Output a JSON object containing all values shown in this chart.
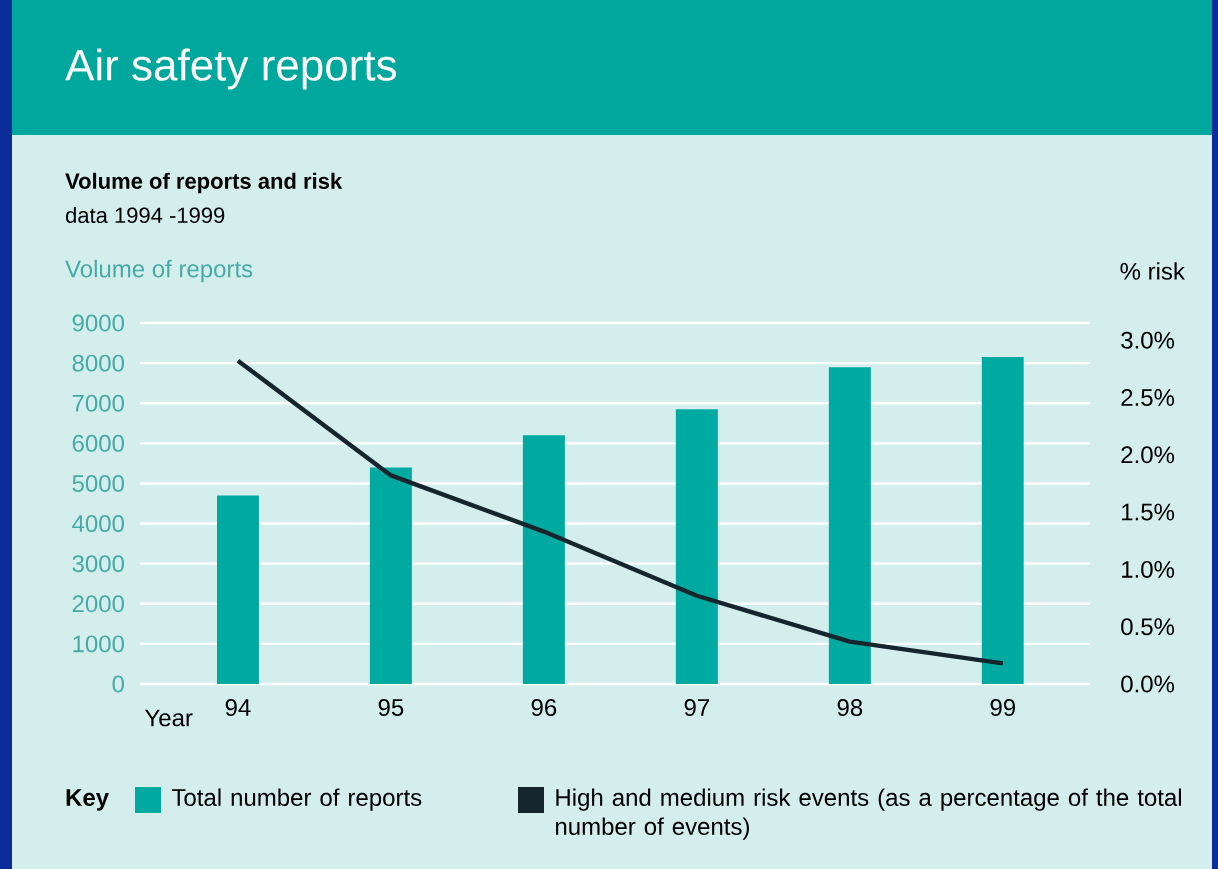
{
  "chart_data": {
    "type": "bar",
    "title": "Air safety reports",
    "subtitle": "Volume of reports and risk",
    "annotations": [
      "data 1994 -1999"
    ],
    "xlabel": "Year",
    "ylabel": "Volume of reports",
    "y2label": "% risk",
    "legend_title": "Key",
    "categories": [
      "94",
      "95",
      "96",
      "97",
      "98",
      "99"
    ],
    "series": [
      {
        "name": "Total number of reports",
        "color": "#00aaa0",
        "values": [
          4700,
          5400,
          6200,
          6850,
          7900,
          8150
        ]
      },
      {
        "name": "High and medium risk events (as a percentage of the total number of events)",
        "type": "line",
        "axis": "y2",
        "color": "#14252d",
        "values": [
          2.82,
          1.82,
          1.33,
          0.77,
          0.37,
          0.18
        ]
      }
    ],
    "ylim": [
      0,
      9000
    ],
    "yticks": [
      0,
      1000,
      2000,
      3000,
      4000,
      5000,
      6000,
      7000,
      8000,
      9000
    ],
    "y2lim": [
      0,
      3.15
    ],
    "y2ticks": [
      {
        "value": 0,
        "label": "0.0%"
      },
      {
        "value": 0.5,
        "label": "0.5%"
      },
      {
        "value": 1,
        "label": "1.0%"
      },
      {
        "value": 1.5,
        "label": "1.5%"
      },
      {
        "value": 2,
        "label": "2.0%"
      },
      {
        "value": 2.5,
        "label": "2.5%"
      },
      {
        "value": 3,
        "label": "3.0%"
      }
    ],
    "grid": "y",
    "legend": "bottom"
  }
}
